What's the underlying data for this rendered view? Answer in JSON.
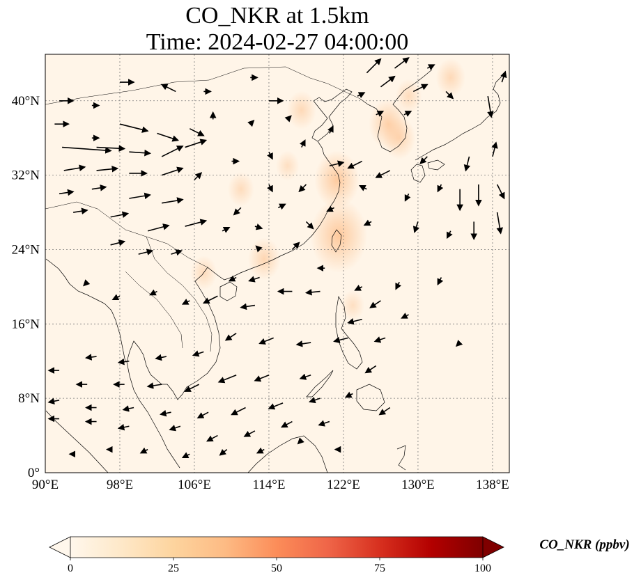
{
  "title_line1": "CO_NKR at 1.5km",
  "title_line2": "Time: 2024-02-27 04:00:00",
  "map": {
    "projection": "PlateCarree",
    "lon_range": [
      90,
      139.8
    ],
    "lat_range": [
      0,
      45
    ],
    "x_ticks": [
      {
        "lon": 90,
        "label": "90°E"
      },
      {
        "lon": 98,
        "label": "98°E"
      },
      {
        "lon": 106,
        "label": "106°E"
      },
      {
        "lon": 114,
        "label": "114°E"
      },
      {
        "lon": 122,
        "label": "122°E"
      },
      {
        "lon": 130,
        "label": "130°E"
      },
      {
        "lon": 138,
        "label": "138°E"
      }
    ],
    "y_ticks": [
      {
        "lat": 0,
        "label": "0°"
      },
      {
        "lat": 8,
        "label": "8°N"
      },
      {
        "lat": 16,
        "label": "16°N"
      },
      {
        "lat": 24,
        "label": "24°N"
      },
      {
        "lat": 32,
        "label": "32°N"
      },
      {
        "lat": 40,
        "label": "40°N"
      }
    ],
    "gridlines": true,
    "background_color": "#fff5e8",
    "coast_color": "#000000",
    "hotspots": [
      {
        "lon": 121.5,
        "lat": 25.5,
        "level": 30
      },
      {
        "lon": 121.3,
        "lat": 31.5,
        "level": 22
      },
      {
        "lon": 126.8,
        "lat": 37.5,
        "level": 18
      },
      {
        "lon": 128.0,
        "lat": 36.0,
        "level": 14
      },
      {
        "lon": 117.5,
        "lat": 39.0,
        "level": 12
      },
      {
        "lon": 113.5,
        "lat": 23.0,
        "level": 14
      },
      {
        "lon": 111.0,
        "lat": 30.5,
        "level": 10
      },
      {
        "lon": 116.0,
        "lat": 33.0,
        "level": 8
      },
      {
        "lon": 133.5,
        "lat": 42.5,
        "level": 12
      },
      {
        "lon": 129.0,
        "lat": 40.5,
        "level": 10
      },
      {
        "lon": 107.0,
        "lat": 21.5,
        "level": 10
      },
      {
        "lon": 123.0,
        "lat": 18.0,
        "level": 8
      }
    ],
    "wind_vectors": [
      {
        "lon": 91.5,
        "lat": 40.0,
        "u": 2,
        "v": 0
      },
      {
        "lon": 95.0,
        "lat": 39.5,
        "u": 1,
        "v": 0
      },
      {
        "lon": 98.0,
        "lat": 42.0,
        "u": 2,
        "v": 0
      },
      {
        "lon": 104.0,
        "lat": 41.0,
        "u": -2,
        "v": 1
      },
      {
        "lon": 107.0,
        "lat": 41.0,
        "u": 1,
        "v": 0
      },
      {
        "lon": 112.0,
        "lat": 42.5,
        "u": 1,
        "v": 0
      },
      {
        "lon": 114.0,
        "lat": 40.0,
        "u": 2,
        "v": 0
      },
      {
        "lon": 108.0,
        "lat": 38.0,
        "u": 0,
        "v": 1
      },
      {
        "lon": 91.0,
        "lat": 37.5,
        "u": 2,
        "v": 0
      },
      {
        "lon": 95.0,
        "lat": 36.0,
        "u": 1,
        "v": 0
      },
      {
        "lon": 98.0,
        "lat": 37.5,
        "u": 4,
        "v": -1
      },
      {
        "lon": 102.0,
        "lat": 36.5,
        "u": 3,
        "v": -1
      },
      {
        "lon": 105.5,
        "lat": 37.0,
        "u": 2,
        "v": -1
      },
      {
        "lon": 91.8,
        "lat": 35.0,
        "u": 7,
        "v": -0.5
      },
      {
        "lon": 95.5,
        "lat": 35.0,
        "u": 4,
        "v": -0.2
      },
      {
        "lon": 99.0,
        "lat": 34.5,
        "u": 3,
        "v": -0.2
      },
      {
        "lon": 102.5,
        "lat": 34.0,
        "u": 3,
        "v": 1.5
      },
      {
        "lon": 105.0,
        "lat": 35.0,
        "u": 3,
        "v": 1
      },
      {
        "lon": 92.0,
        "lat": 32.5,
        "u": 3,
        "v": 0.5
      },
      {
        "lon": 95.5,
        "lat": 32.5,
        "u": 3,
        "v": 0.3
      },
      {
        "lon": 99.0,
        "lat": 32.2,
        "u": 2.5,
        "v": 0
      },
      {
        "lon": 102.5,
        "lat": 32.0,
        "u": 3,
        "v": 1
      },
      {
        "lon": 106.0,
        "lat": 31.5,
        "u": 1,
        "v": 1
      },
      {
        "lon": 91.5,
        "lat": 30.0,
        "u": 2,
        "v": 0.3
      },
      {
        "lon": 95.0,
        "lat": 30.5,
        "u": 2,
        "v": 0.3
      },
      {
        "lon": 99.0,
        "lat": 29.5,
        "u": 3,
        "v": 0.5
      },
      {
        "lon": 102.5,
        "lat": 29.0,
        "u": 3,
        "v": 0.5
      },
      {
        "lon": 93.0,
        "lat": 28.0,
        "u": 2,
        "v": 0.3
      },
      {
        "lon": 97.0,
        "lat": 27.5,
        "u": 2.5,
        "v": 0.5
      },
      {
        "lon": 101.0,
        "lat": 26.0,
        "u": 3,
        "v": 0.8
      },
      {
        "lon": 105.0,
        "lat": 26.5,
        "u": 3,
        "v": 0.8
      },
      {
        "lon": 109.0,
        "lat": 26.0,
        "u": 1,
        "v": 0.5
      },
      {
        "lon": 112.5,
        "lat": 26.5,
        "u": 1,
        "v": -0.3
      },
      {
        "lon": 97.0,
        "lat": 24.5,
        "u": 2,
        "v": 0.5
      },
      {
        "lon": 100.0,
        "lat": 23.5,
        "u": 2,
        "v": 0.5
      },
      {
        "lon": 103.5,
        "lat": 23.5,
        "u": 1.5,
        "v": 0.5
      },
      {
        "lon": 111.0,
        "lat": 28.5,
        "u": -1,
        "v": -1
      },
      {
        "lon": 115.0,
        "lat": 28.5,
        "u": 1,
        "v": 0.5
      },
      {
        "lon": 118.0,
        "lat": 27.0,
        "u": 1,
        "v": -1
      },
      {
        "lon": 114.0,
        "lat": 31.0,
        "u": 0.5,
        "v": -1
      },
      {
        "lon": 118.0,
        "lat": 31.0,
        "u": -1,
        "v": -1
      },
      {
        "lon": 110.0,
        "lat": 33.5,
        "u": 1,
        "v": 0
      },
      {
        "lon": 114.0,
        "lat": 34.5,
        "u": 0.5,
        "v": -1
      },
      {
        "lon": 117.5,
        "lat": 35.0,
        "u": 0.5,
        "v": 1
      },
      {
        "lon": 120.5,
        "lat": 36.5,
        "u": 0.5,
        "v": 1
      },
      {
        "lon": 112.0,
        "lat": 37.5,
        "u": 0.5,
        "v": 0.5
      },
      {
        "lon": 116.0,
        "lat": 38.0,
        "u": 0.5,
        "v": 0.5
      },
      {
        "lon": 124.5,
        "lat": 43.0,
        "u": 2,
        "v": 2
      },
      {
        "lon": 127.5,
        "lat": 43.5,
        "u": 2,
        "v": 1.5
      },
      {
        "lon": 131.0,
        "lat": 43.5,
        "u": 1,
        "v": 0.5
      },
      {
        "lon": 126.0,
        "lat": 41.5,
        "u": 2,
        "v": 1.5
      },
      {
        "lon": 129.5,
        "lat": 41.0,
        "u": 2,
        "v": 1
      },
      {
        "lon": 123.5,
        "lat": 40.5,
        "u": 1,
        "v": 0.5
      },
      {
        "lon": 125.5,
        "lat": 38.5,
        "u": 1,
        "v": 0.5
      },
      {
        "lon": 128.5,
        "lat": 38.5,
        "u": 1,
        "v": 0.5
      },
      {
        "lon": 133.0,
        "lat": 41.0,
        "u": 1,
        "v": -1
      },
      {
        "lon": 137.5,
        "lat": 40.5,
        "u": 0.5,
        "v": -3
      },
      {
        "lon": 139.0,
        "lat": 42.0,
        "u": 0.5,
        "v": 1.5
      },
      {
        "lon": 124.0,
        "lat": 33.5,
        "u": -2,
        "v": -1
      },
      {
        "lon": 127.0,
        "lat": 32.5,
        "u": -2,
        "v": -1
      },
      {
        "lon": 131.0,
        "lat": 34.0,
        "u": -1,
        "v": -1
      },
      {
        "lon": 135.5,
        "lat": 34.0,
        "u": -0.5,
        "v": -2
      },
      {
        "lon": 138.0,
        "lat": 34.0,
        "u": 0.5,
        "v": 2
      },
      {
        "lon": 120.5,
        "lat": 33.0,
        "u": 2,
        "v": 0.5
      },
      {
        "lon": 124.5,
        "lat": 30.5,
        "u": -1,
        "v": 0.5
      },
      {
        "lon": 129.0,
        "lat": 30.0,
        "u": -0.5,
        "v": -1
      },
      {
        "lon": 132.5,
        "lat": 31.0,
        "u": -0.5,
        "v": -1
      },
      {
        "lon": 134.5,
        "lat": 30.5,
        "u": 0,
        "v": -3
      },
      {
        "lon": 136.5,
        "lat": 31.0,
        "u": 0,
        "v": -3
      },
      {
        "lon": 138.5,
        "lat": 31.0,
        "u": 1,
        "v": -2
      },
      {
        "lon": 138.5,
        "lat": 28.0,
        "u": 0.5,
        "v": -3
      },
      {
        "lon": 136.0,
        "lat": 27.0,
        "u": 0,
        "v": -2.5
      },
      {
        "lon": 133.5,
        "lat": 26.0,
        "u": -0.5,
        "v": -1
      },
      {
        "lon": 130.0,
        "lat": 27.0,
        "u": -0.5,
        "v": -1.5
      },
      {
        "lon": 125.0,
        "lat": 27.0,
        "u": -1,
        "v": -0.5
      },
      {
        "lon": 121.0,
        "lat": 28.5,
        "u": -1,
        "v": -0.5
      },
      {
        "lon": 113.0,
        "lat": 24.0,
        "u": -0.5,
        "v": 0.5
      },
      {
        "lon": 116.5,
        "lat": 24.0,
        "u": 1,
        "v": 1
      },
      {
        "lon": 120.0,
        "lat": 22.0,
        "u": -1,
        "v": 0
      },
      {
        "lon": 110.5,
        "lat": 21.0,
        "u": -1,
        "v": -0.5
      },
      {
        "lon": 113.0,
        "lat": 21.0,
        "u": -1.5,
        "v": -0.5
      },
      {
        "lon": 116.5,
        "lat": 19.5,
        "u": -2,
        "v": 0
      },
      {
        "lon": 119.5,
        "lat": 19.5,
        "u": -2,
        "v": -0.2
      },
      {
        "lon": 124.0,
        "lat": 20.0,
        "u": -1,
        "v": -0.5
      },
      {
        "lon": 128.0,
        "lat": 20.5,
        "u": -0.5,
        "v": -1
      },
      {
        "lon": 132.5,
        "lat": 21.0,
        "u": -0.5,
        "v": -1
      },
      {
        "lon": 126.0,
        "lat": 18.5,
        "u": -1.5,
        "v": -1
      },
      {
        "lon": 129.0,
        "lat": 17.0,
        "u": -1,
        "v": -0.5
      },
      {
        "lon": 124.0,
        "lat": 16.5,
        "u": -2,
        "v": -0.5
      },
      {
        "lon": 112.5,
        "lat": 18.0,
        "u": -2,
        "v": -0.3
      },
      {
        "lon": 108.5,
        "lat": 19.0,
        "u": -2,
        "v": -1
      },
      {
        "lon": 105.5,
        "lat": 18.5,
        "u": -1,
        "v": -0.5
      },
      {
        "lon": 102.0,
        "lat": 19.5,
        "u": -1,
        "v": -0.5
      },
      {
        "lon": 98.0,
        "lat": 19.0,
        "u": -1,
        "v": -0.5
      },
      {
        "lon": 94.5,
        "lat": 20.5,
        "u": -0.5,
        "v": -0.5
      },
      {
        "lon": 110.5,
        "lat": 15.0,
        "u": -1.5,
        "v": -1
      },
      {
        "lon": 114.5,
        "lat": 14.5,
        "u": -2,
        "v": -0.8
      },
      {
        "lon": 118.5,
        "lat": 14.0,
        "u": -2,
        "v": -0.3
      },
      {
        "lon": 122.5,
        "lat": 14.5,
        "u": -2,
        "v": -0.5
      },
      {
        "lon": 126.5,
        "lat": 14.5,
        "u": -1.5,
        "v": -0.5
      },
      {
        "lon": 134.5,
        "lat": 14.0,
        "u": -0.5,
        "v": -0.5
      },
      {
        "lon": 107.0,
        "lat": 13.0,
        "u": -1.5,
        "v": -0.5
      },
      {
        "lon": 103.0,
        "lat": 12.5,
        "u": -1.5,
        "v": -0.3
      },
      {
        "lon": 99.0,
        "lat": 12.0,
        "u": -1.5,
        "v": -0.2
      },
      {
        "lon": 95.5,
        "lat": 12.5,
        "u": -1.5,
        "v": -0.2
      },
      {
        "lon": 91.5,
        "lat": 11.0,
        "u": -1.5,
        "v": 0
      },
      {
        "lon": 94.5,
        "lat": 9.5,
        "u": -1.5,
        "v": 0
      },
      {
        "lon": 98.5,
        "lat": 9.5,
        "u": -1.5,
        "v": 0
      },
      {
        "lon": 102.5,
        "lat": 9.5,
        "u": -2,
        "v": -0.3
      },
      {
        "lon": 106.5,
        "lat": 9.5,
        "u": -2,
        "v": -1
      },
      {
        "lon": 110.5,
        "lat": 10.5,
        "u": -2.5,
        "v": -1
      },
      {
        "lon": 114.0,
        "lat": 10.5,
        "u": -2,
        "v": -0.8
      },
      {
        "lon": 118.5,
        "lat": 10.5,
        "u": -1.5,
        "v": -0.5
      },
      {
        "lon": 125.5,
        "lat": 11.5,
        "u": -1.5,
        "v": -1
      },
      {
        "lon": 91.5,
        "lat": 7.8,
        "u": -1.5,
        "v": -0.3
      },
      {
        "lon": 95.5,
        "lat": 7.0,
        "u": -1.5,
        "v": 0
      },
      {
        "lon": 99.5,
        "lat": 7.0,
        "u": -1.5,
        "v": -0.3
      },
      {
        "lon": 103.5,
        "lat": 6.5,
        "u": -1.5,
        "v": -0.3
      },
      {
        "lon": 107.5,
        "lat": 6.5,
        "u": -1.5,
        "v": -0.8
      },
      {
        "lon": 111.5,
        "lat": 7.0,
        "u": -2,
        "v": -1
      },
      {
        "lon": 115.5,
        "lat": 7.5,
        "u": -2,
        "v": -0.8
      },
      {
        "lon": 119.5,
        "lat": 8.0,
        "u": -1.5,
        "v": -0.5
      },
      {
        "lon": 123.0,
        "lat": 8.5,
        "u": -1,
        "v": -0.5
      },
      {
        "lon": 127.0,
        "lat": 7.0,
        "u": -1.5,
        "v": -1
      },
      {
        "lon": 91.5,
        "lat": 5.8,
        "u": -1.5,
        "v": 0
      },
      {
        "lon": 95.5,
        "lat": 5.5,
        "u": -1.5,
        "v": 0
      },
      {
        "lon": 99.0,
        "lat": 5.0,
        "u": -1.5,
        "v": -0.3
      },
      {
        "lon": 104.5,
        "lat": 5.0,
        "u": -1.5,
        "v": -0.5
      },
      {
        "lon": 108.5,
        "lat": 4.0,
        "u": -1.5,
        "v": -0.8
      },
      {
        "lon": 112.5,
        "lat": 4.5,
        "u": -1.5,
        "v": -0.8
      },
      {
        "lon": 116.5,
        "lat": 5.5,
        "u": -1.5,
        "v": -0.8
      },
      {
        "lon": 120.5,
        "lat": 5.5,
        "u": -1.5,
        "v": -0.5
      },
      {
        "lon": 93.0,
        "lat": 2.0,
        "u": -0.5,
        "v": 0
      },
      {
        "lon": 97.0,
        "lat": 2.5,
        "u": -0.5,
        "v": 0
      },
      {
        "lon": 101.0,
        "lat": 2.5,
        "u": -1,
        "v": -0.5
      },
      {
        "lon": 105.5,
        "lat": 2.0,
        "u": -1,
        "v": -0.5
      },
      {
        "lon": 109.5,
        "lat": 2.5,
        "u": -1,
        "v": -0.8
      },
      {
        "lon": 113.5,
        "lat": 2.5,
        "u": -1,
        "v": -0.5
      },
      {
        "lon": 117.5,
        "lat": 3.5,
        "u": -0.5,
        "v": -0.5
      },
      {
        "lon": 121.5,
        "lat": 2.5,
        "u": -0.5,
        "v": 0
      }
    ]
  },
  "colorbar": {
    "label": "CO_NKR (ppbv)",
    "min": 0,
    "max": 100,
    "ticks": [
      "0",
      "25",
      "50",
      "75",
      "100"
    ],
    "colormap": "OrRd",
    "stops": [
      "#fff7ec",
      "#fee8c8",
      "#fdd49e",
      "#fdbb84",
      "#fc8d59",
      "#ef6548",
      "#d7301f",
      "#b30000",
      "#7f0000"
    ],
    "extend": "both"
  }
}
